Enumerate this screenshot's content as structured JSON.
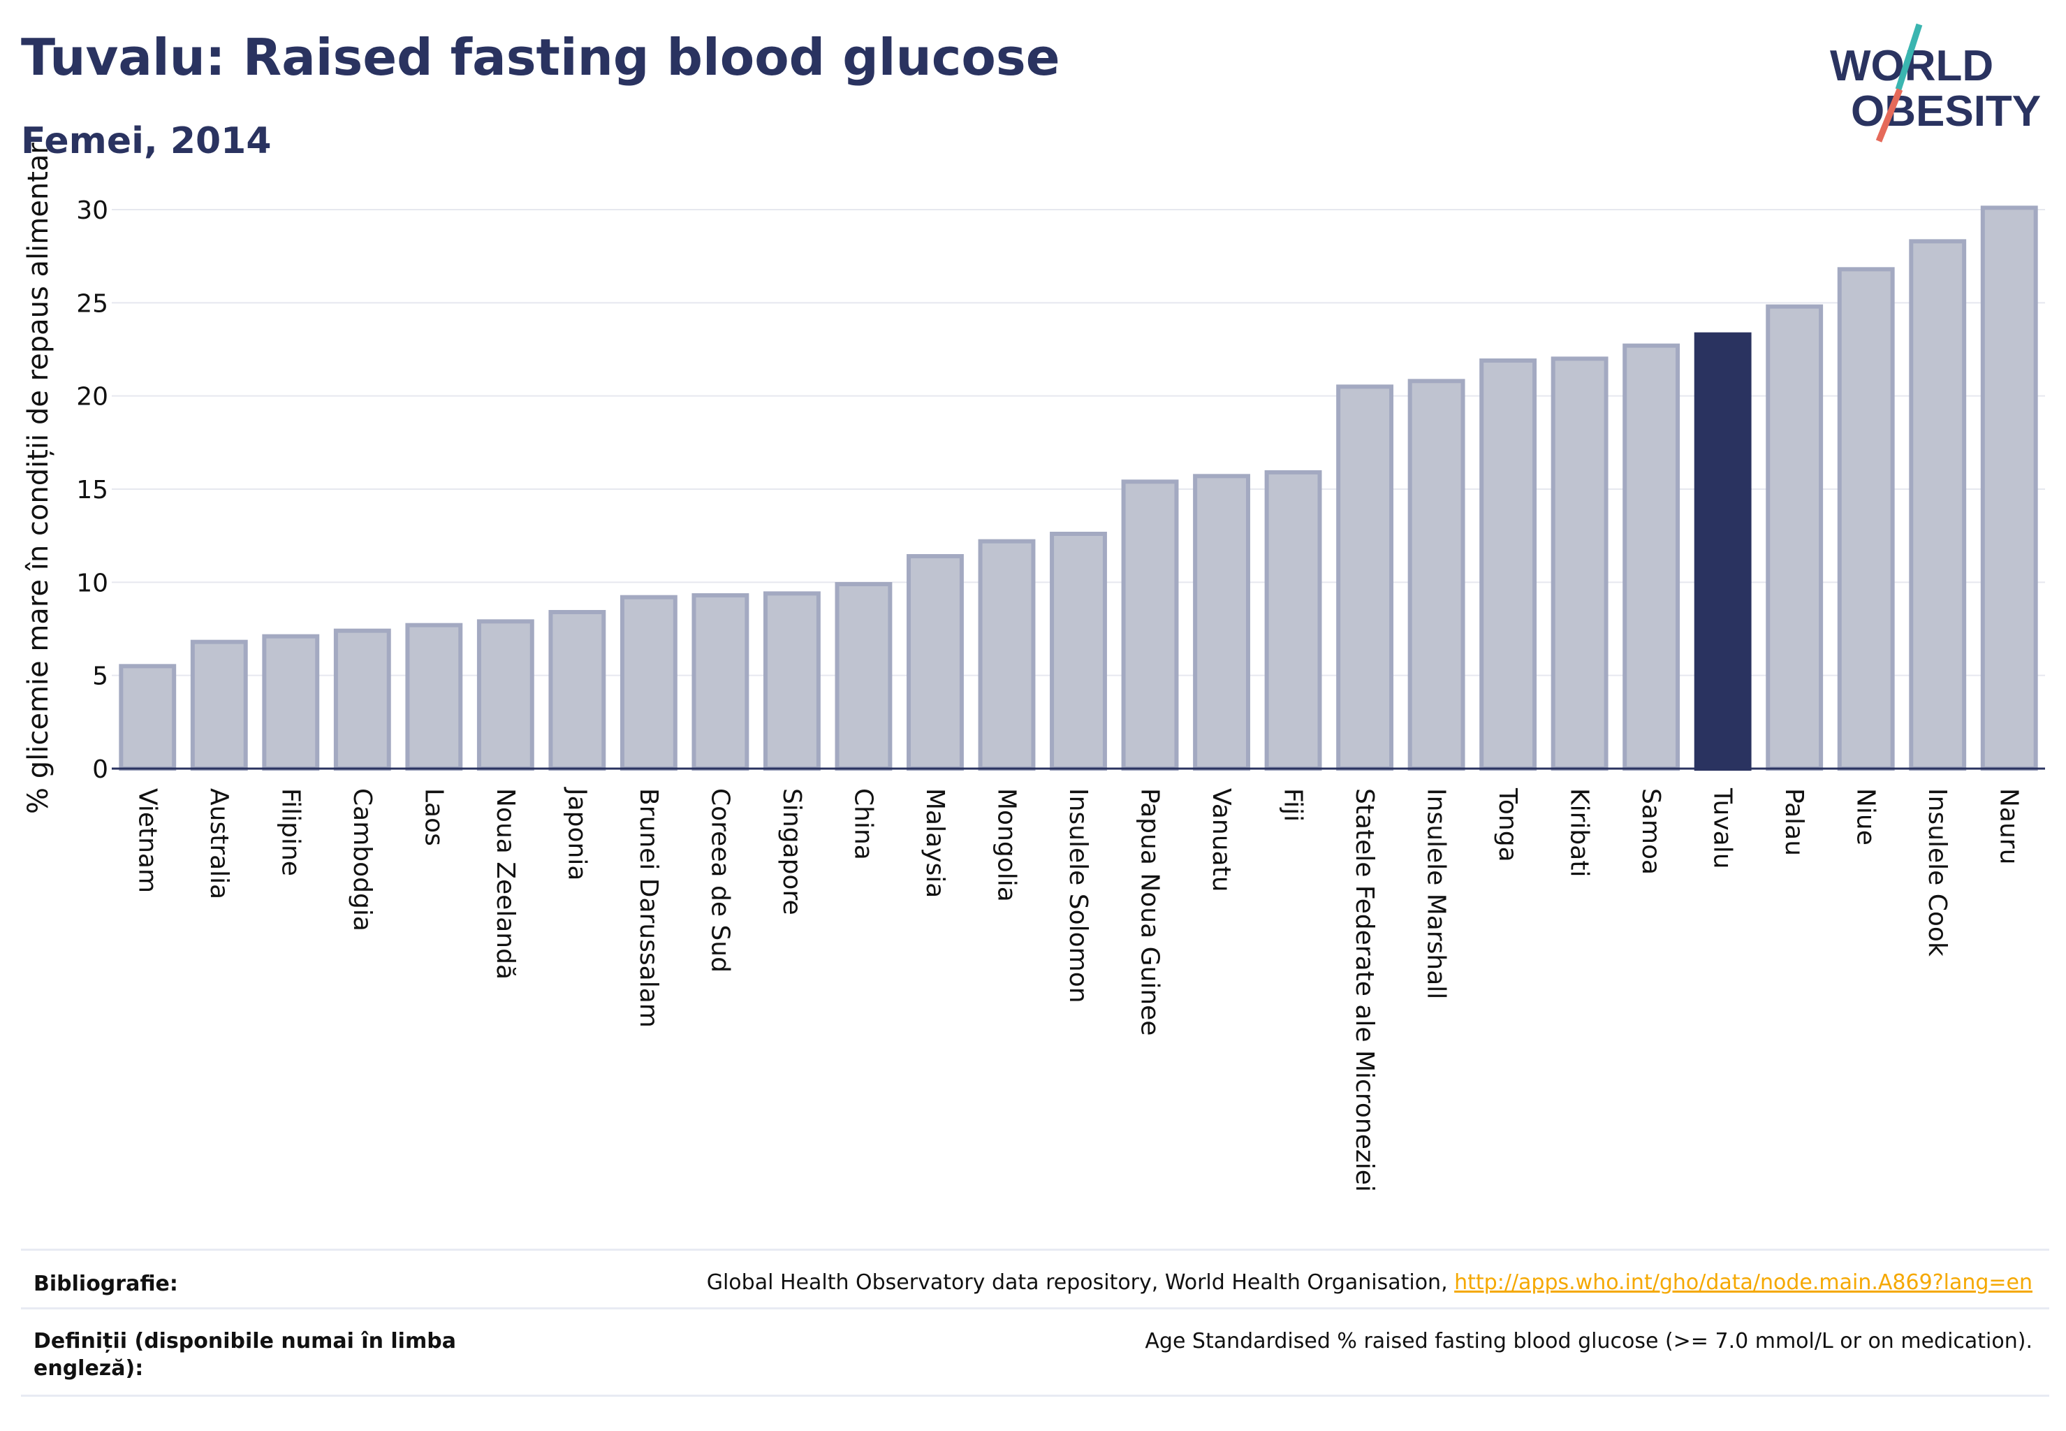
{
  "header": {
    "title": "Tuvalu: Raised fasting blood glucose",
    "subtitle": "Femei, 2014"
  },
  "logo": {
    "line1": "WORLD",
    "line2": "OBESITY",
    "colors": {
      "text": "#2a3360",
      "slash_top": "#3ab5b0",
      "slash_bottom": "#e56a5a"
    }
  },
  "chart_data": {
    "type": "bar",
    "title": "Tuvalu: Raised fasting blood glucose",
    "subtitle": "Femei, 2014",
    "xlabel": "",
    "ylabel": "% glicemie mare în condiții de repaus alimentar",
    "ylim": [
      0,
      31.5
    ],
    "yticks": [
      0,
      5,
      10,
      15,
      20,
      25,
      30
    ],
    "grid": true,
    "highlight": "Tuvalu",
    "colors": {
      "bar": "#bfc3d0",
      "bar_edge": "#a3a9c1",
      "highlight": "#2a3360",
      "grid": "#e6e8ef",
      "axis": "#2a3360"
    },
    "categories": [
      "Vietnam",
      "Australia",
      "Filipine",
      "Cambodgia",
      "Laos",
      "Noua Zeelandă",
      "Japonia",
      "Brunei Darussalam",
      "Coreea de Sud",
      "Singapore",
      "China",
      "Malaysia",
      "Mongolia",
      "Insulele Solomon",
      "Papua Noua Guinee",
      "Vanuatu",
      "Fiji",
      "Statele Federate ale Microneziei",
      "Insulele Marshall",
      "Tonga",
      "Kiribati",
      "Samoa",
      "Tuvalu",
      "Palau",
      "Niue",
      "Insulele Cook",
      "Nauru"
    ],
    "values": [
      5.5,
      6.8,
      7.1,
      7.4,
      7.7,
      7.9,
      8.4,
      9.2,
      9.3,
      9.4,
      9.9,
      11.4,
      12.2,
      12.6,
      15.4,
      15.7,
      15.9,
      20.5,
      20.8,
      21.9,
      22.0,
      22.7,
      23.3,
      24.8,
      26.8,
      28.3,
      30.1
    ]
  },
  "footer": {
    "bibliography_label": "Bibliografie:",
    "bibliography_text": "Global Health Observatory data repository, World Health Organisation, ",
    "bibliography_link": "http://apps.who.int/gho/data/node.main.A869?lang=en",
    "definitions_label": "Definiții (disponibile numai în limba engleză):",
    "definitions_text": "Age Standardised % raised fasting blood glucose (>= 7.0 mmol/L or on medication)."
  }
}
